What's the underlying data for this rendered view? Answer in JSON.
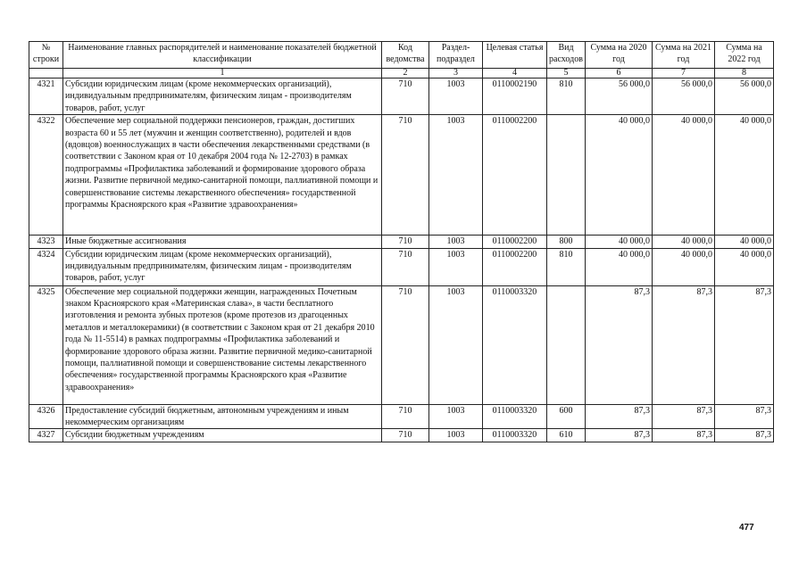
{
  "headers": [
    "№ строки",
    "Наименование главных распорядителей и наименование показателей бюджетной классификации",
    "Код ведомства",
    "Раздел-подраздел",
    "Целевая статья",
    "Вид расходов",
    "Сумма на 2020 год",
    "Сумма на 2021 год",
    "Сумма на 2022 год"
  ],
  "column_numbers": [
    "",
    "1",
    "2",
    "3",
    "4",
    "5",
    "6",
    "7",
    "8"
  ],
  "rows": [
    {
      "num": "4321",
      "name": "Субсидии юридическим лицам (кроме некоммерческих организаций), индивидуальным предпринимателям, физическим лицам - производителям товаров, работ, услуг",
      "code": "710",
      "section": "1003",
      "target": "0110002190",
      "type": "810",
      "sum2020": "56 000,0",
      "sum2021": "56 000,0",
      "sum2022": "56 000,0"
    },
    {
      "num": "4322",
      "name": "Обеспечение мер социальной поддержки пенсионеров, граждан, достигших возраста 60 и 55 лет (мужчин и женщин соответственно), родителей и вдов (вдовцов) военнослужащих в части обеспечения лекарственными средствами (в соответствии с Законом края от 10 декабря 2004 года № 12-2703) в рамках подпрограммы «Профилактика заболеваний и формирование здорового образа жизни. Развитие первичной медико-санитарной помощи, паллиативной помощи и совершенствование системы лекарственного обеспечения» государственной программы Красноярского края «Развитие здравоохранения»",
      "code": "710",
      "section": "1003",
      "target": "0110002200",
      "type": "",
      "sum2020": "40 000,0",
      "sum2021": "40 000,0",
      "sum2022": "40 000,0"
    },
    {
      "num": "4323",
      "name": "Иные бюджетные ассигнования",
      "code": "710",
      "section": "1003",
      "target": "0110002200",
      "type": "800",
      "sum2020": "40 000,0",
      "sum2021": "40 000,0",
      "sum2022": "40 000,0"
    },
    {
      "num": "4324",
      "name": "Субсидии юридическим лицам (кроме некоммерческих организаций), индивидуальным предпринимателям, физическим лицам - производителям товаров, работ, услуг",
      "code": "710",
      "section": "1003",
      "target": "0110002200",
      "type": "810",
      "sum2020": "40 000,0",
      "sum2021": "40 000,0",
      "sum2022": "40 000,0"
    },
    {
      "num": "4325",
      "name": "Обеспечение мер социальной поддержки женщин, награжденных Почетным знаком Красноярского края «Материнская слава», в части бесплатного изготовления и ремонта зубных протезов (кроме протезов из драгоценных металлов и металлокерамики) (в соответствии с Законом края от 21 декабря 2010 года № 11-5514) в рамках подпрограммы «Профилактика заболеваний и формирование здорового образа жизни. Развитие первичной медико-санитарной помощи, паллиативной помощи и совершенствование системы лекарственного обеспечения» государственной программы Красноярского края «Развитие здравоохранения»",
      "code": "710",
      "section": "1003",
      "target": "0110003320",
      "type": "",
      "sum2020": "87,3",
      "sum2021": "87,3",
      "sum2022": "87,3"
    },
    {
      "num": "4326",
      "name": "Предоставление субсидий бюджетным, автономным учреждениям и иным некоммерческим организациям",
      "code": "710",
      "section": "1003",
      "target": "0110003320",
      "type": "600",
      "sum2020": "87,3",
      "sum2021": "87,3",
      "sum2022": "87,3"
    },
    {
      "num": "4327",
      "name": "Субсидии бюджетным учреждениям",
      "code": "710",
      "section": "1003",
      "target": "0110003320",
      "type": "610",
      "sum2020": "87,3",
      "sum2021": "87,3",
      "sum2022": "87,3"
    }
  ],
  "page_number": "477"
}
